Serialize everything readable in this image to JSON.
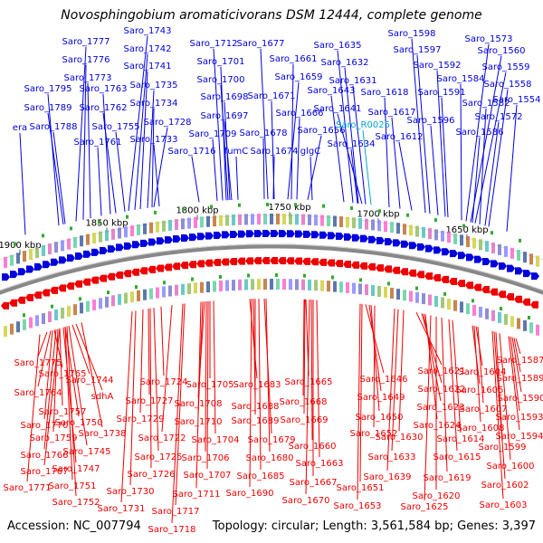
{
  "title": "Novosphingobium aromaticivorans DSM 12444, complete genome",
  "accession_text": "Accession: NC_007794",
  "summary_text": "Topology: circular; Length: 3,561,584 bp; Genes: 3,397",
  "colors": {
    "forward": "#0000dd",
    "reverse": "#ee0000",
    "rna": "#00aacc",
    "backbone": "#888888"
  },
  "kbp_ticks": [
    "1900 kbp",
    "1850 kbp",
    "1800 kbp",
    "1750 kbp",
    "1700 kbp",
    "1650 kbp"
  ],
  "top_labels": [
    "Saro_1743",
    "Saro_1777",
    "Saro_1742",
    "Saro_1776",
    "Saro_1741",
    "Saro_1773",
    "Saro_1795",
    "Saro_1763",
    "Saro_1735",
    "Saro_1734",
    "Saro_1789",
    "Saro_1762",
    "Saro_1728",
    "era",
    "Saro_1788",
    "Saro_1755",
    "Saro_1733",
    "Saro_1761",
    "Saro_1712",
    "Saro_1701",
    "Saro_1700",
    "Saro_1698",
    "Saro_1697",
    "Saro_1709",
    "Saro_1716",
    "fumC",
    "Saro_1677",
    "Saro_1661",
    "Saro_1659",
    "Saro_1671",
    "Saro_1666",
    "Saro_1678",
    "Saro_1656",
    "Saro_1674",
    "glgC",
    "Saro_1635",
    "Saro_1632",
    "Saro_1631",
    "Saro_1643",
    "Saro_1618",
    "Saro_1641",
    "Saro_1617",
    "Saro_R0025",
    "Saro_1612",
    "Saro_1634",
    "Saro_1598",
    "Saro_1597",
    "Saro_1573",
    "Saro_1560",
    "Saro_1592",
    "Saro_1559",
    "Saro_1584",
    "Saro_1558",
    "Saro_1591",
    "Saro_1554",
    "Saro_1582",
    "Saro_1596",
    "Saro_1572",
    "Saro_1586"
  ],
  "bottom_labels": [
    "Saro_1775",
    "Saro_1765",
    "Saro_1744",
    "Saro_1764",
    "sdhA",
    "Saro_1757",
    "Saro_1750",
    "Saro_1770",
    "Saro_1759",
    "Saro_1738",
    "Saro_1745",
    "Saro_1766",
    "Saro_1767",
    "Saro_1747",
    "Saro_1771",
    "Saro_1751",
    "Saro_1752",
    "Saro_1724",
    "Saro_1727",
    "Saro_1729",
    "Saro_1725",
    "Saro_1726",
    "Saro_1730",
    "Saro_1731",
    "Saro_1705",
    "Saro_1708",
    "Saro_1710",
    "Saro_1722",
    "Saro_1704",
    "Saro_1706",
    "Saro_1707",
    "Saro_1711",
    "Saro_1717",
    "Saro_1718",
    "Saro_1683",
    "Saro_1688",
    "Saro_1689",
    "Saro_1679",
    "Saro_1680",
    "Saro_1685",
    "Saro_1690",
    "Saro_1665",
    "Saro_1668",
    "Saro_1669",
    "Saro_1660",
    "Saro_1663",
    "Saro_1667",
    "Saro_1670",
    "Saro_1646",
    "Saro_1649",
    "Saro_1650",
    "Saro_1652",
    "Saro_1651",
    "Saro_1653",
    "Saro_1621",
    "Saro_1622",
    "Saro_1623",
    "Saro_1624",
    "Saro_1630",
    "Saro_1633",
    "Saro_1639",
    "Saro_1625",
    "Saro_1620",
    "Saro_1619",
    "Saro_1615",
    "Saro_1614",
    "Saro_1604",
    "Saro_1605",
    "Saro_1607",
    "Saro_1608",
    "Saro_1587",
    "Saro_1589",
    "Saro_1590",
    "Saro_1593",
    "Saro_1594",
    "Saro_1599",
    "Saro_1600",
    "Saro_1602",
    "Saro_1603"
  ]
}
